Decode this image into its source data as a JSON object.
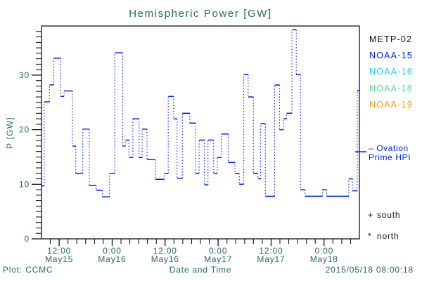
{
  "title": "Hemispheric Power [GW]",
  "colors": {
    "annotation": "#2a6868",
    "axis": "#000000",
    "data_line": "#0022ee"
  },
  "legend": {
    "satellites": [
      {
        "label": "METP-02",
        "color": "#111111"
      },
      {
        "label": "NOAA-15",
        "color": "#0022ee"
      },
      {
        "label": "NOAA-16",
        "color": "#22ccff"
      },
      {
        "label": "NOAA-18",
        "color": "#55dd88"
      },
      {
        "label": "NOAA-19",
        "color": "#ff9911"
      }
    ],
    "model": {
      "line1": "– Ovation",
      "line2": "Prime HPI"
    },
    "south": {
      "symbol": "+",
      "label": "south"
    },
    "north": {
      "symbol": "*",
      "label": "north"
    }
  },
  "footer": {
    "left": "Plot: CCMC",
    "right": "2015/05/18 08:00:18"
  },
  "chart_data": {
    "type": "line",
    "subtype": "step-dotted-histogram",
    "title": "Hemispheric Power [GW]",
    "xlabel": "Date and Time",
    "ylabel": "P [GW]",
    "ylim": [
      0,
      39
    ],
    "yticks": [
      0,
      10,
      20,
      30
    ],
    "y_minor_step": 1,
    "x_range_hours": 72,
    "x_minor_step_hours": 2,
    "xticks": [
      {
        "t": 4,
        "time": "12:00",
        "date": "May15"
      },
      {
        "t": 16,
        "time": "0:00",
        "date": "May16"
      },
      {
        "t": 28,
        "time": "12:00",
        "date": "May16"
      },
      {
        "t": 40,
        "time": "0:00",
        "date": "May17"
      },
      {
        "t": 52,
        "time": "12:00",
        "date": "May17"
      },
      {
        "t": 64,
        "time": "0:00",
        "date": "May18"
      }
    ],
    "grid": false,
    "legend_position": "right",
    "series": [
      {
        "name": "Ovation Prime HPI",
        "color": "#0022ee",
        "x_unit": "hours from plot start (May15 ~08:00)",
        "points": [
          [
            0,
            9.7
          ],
          [
            0.6,
            25.1
          ],
          [
            1.8,
            28.2
          ],
          [
            2.75,
            33.1
          ],
          [
            4.35,
            26.1
          ],
          [
            5.1,
            27.1
          ],
          [
            7,
            17
          ],
          [
            7.75,
            12
          ],
          [
            9.35,
            20.1
          ],
          [
            10.8,
            9.8
          ],
          [
            12.4,
            8.9
          ],
          [
            13.8,
            7.7
          ],
          [
            15.4,
            12
          ],
          [
            16.6,
            34.1
          ],
          [
            18.4,
            17
          ],
          [
            19,
            18.1
          ],
          [
            19.8,
            14.9
          ],
          [
            20.7,
            22
          ],
          [
            22.1,
            14.9
          ],
          [
            22.8,
            20.1
          ],
          [
            23.9,
            14.5
          ],
          [
            25.75,
            10.9
          ],
          [
            27.8,
            12
          ],
          [
            28.7,
            26.1
          ],
          [
            29.9,
            22
          ],
          [
            30.7,
            11.1
          ],
          [
            31.9,
            23
          ],
          [
            33.6,
            21.2
          ],
          [
            34.9,
            12
          ],
          [
            35.7,
            18.1
          ],
          [
            36.9,
            9.9
          ],
          [
            37.7,
            18.1
          ],
          [
            39,
            12
          ],
          [
            39.8,
            14.9
          ],
          [
            40.7,
            19.2
          ],
          [
            42.3,
            14
          ],
          [
            43.8,
            12
          ],
          [
            44.8,
            10
          ],
          [
            45.8,
            30.1
          ],
          [
            46.8,
            26
          ],
          [
            48,
            12
          ],
          [
            49,
            11
          ],
          [
            49.6,
            21.1
          ],
          [
            50.7,
            7.8
          ],
          [
            52.8,
            28.2
          ],
          [
            53.9,
            20
          ],
          [
            54.8,
            22
          ],
          [
            55.5,
            23
          ],
          [
            56.7,
            38.3
          ],
          [
            57.7,
            30.1
          ],
          [
            58.65,
            9
          ],
          [
            59.7,
            7.8
          ],
          [
            63.6,
            9
          ],
          [
            64.6,
            7.8
          ],
          [
            69.6,
            11
          ],
          [
            70.4,
            8.8
          ],
          [
            71.5,
            27.2
          ]
        ]
      }
    ]
  }
}
